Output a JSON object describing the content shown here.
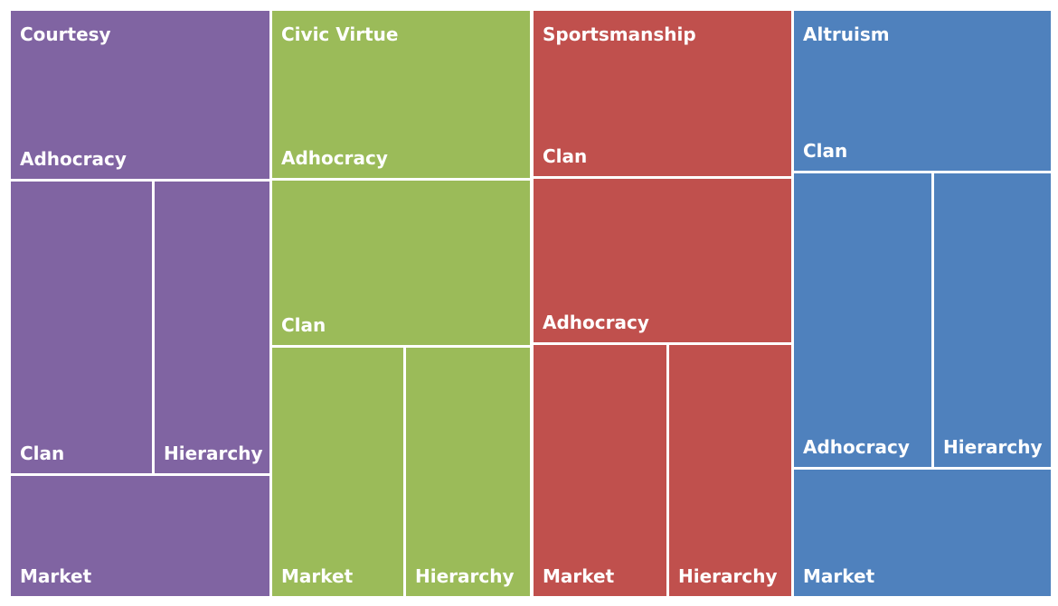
{
  "chart_data": {
    "type": "treemap",
    "groups": [
      {
        "name": "Courtesy",
        "color": "#8064A2",
        "children": [
          {
            "name": "Adhocracy"
          },
          {
            "name": "Clan"
          },
          {
            "name": "Hierarchy"
          },
          {
            "name": "Market"
          }
        ]
      },
      {
        "name": "Civic Virtue",
        "color": "#9BBB59",
        "children": [
          {
            "name": "Adhocracy"
          },
          {
            "name": "Clan"
          },
          {
            "name": "Market"
          },
          {
            "name": "Hierarchy"
          }
        ]
      },
      {
        "name": "Sportsmanship",
        "color": "#C0504D",
        "children": [
          {
            "name": "Clan"
          },
          {
            "name": "Adhocracy"
          },
          {
            "name": "Market"
          },
          {
            "name": "Hierarchy"
          }
        ]
      },
      {
        "name": "Altruism",
        "color": "#4F81BD",
        "children": [
          {
            "name": "Clan"
          },
          {
            "name": "Adhocracy"
          },
          {
            "name": "Hierarchy"
          },
          {
            "name": "Market"
          }
        ]
      }
    ]
  }
}
